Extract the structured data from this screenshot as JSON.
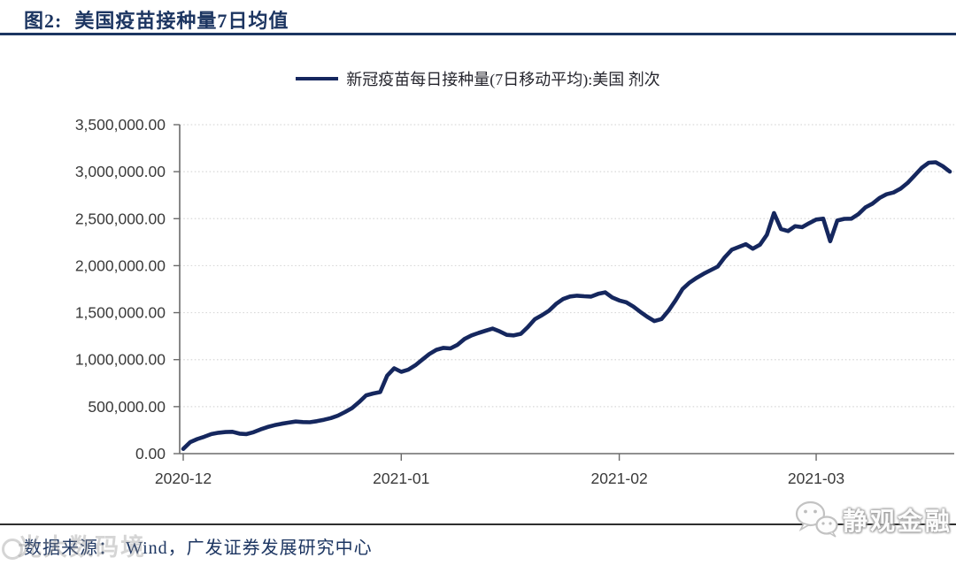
{
  "header": {
    "title_prefix": "图2:",
    "title_main": "美国疫苗接种量7日均值"
  },
  "chart_data": {
    "type": "line",
    "title": "美国疫苗接种量7日均值",
    "legend_label": "新冠疫苗每日接种量(7日移动平均):美国 剂次",
    "line_color": "#15275e",
    "grid": "horizontal-dotted",
    "ylim": [
      0,
      3500000
    ],
    "y_tick_step": 500000,
    "y_tick_labels": [
      "0.00",
      "500,000.00",
      "1,000,000.00",
      "1,500,000.00",
      "2,000,000.00",
      "2,500,000.00",
      "3,000,000.00",
      "3,500,000.00"
    ],
    "x_ticks": [
      {
        "label": "2020-12",
        "day": 0
      },
      {
        "label": "2021-01",
        "day": 31
      },
      {
        "label": "2021-02",
        "day": 62
      },
      {
        "label": "2021-03",
        "day": 90
      }
    ],
    "series": [
      {
        "name": "新冠疫苗每日接种量(7日移动平均):美国 剂次",
        "unit": "剂次",
        "color": "#15275e",
        "values": [
          50000,
          122000,
          155000,
          180000,
          208000,
          222000,
          230000,
          232000,
          213000,
          208000,
          228000,
          258000,
          283000,
          303000,
          318000,
          330000,
          342000,
          336000,
          334000,
          345000,
          360000,
          378000,
          405000,
          442000,
          485000,
          548000,
          620000,
          640000,
          655000,
          830000,
          908000,
          870000,
          893000,
          940000,
          1000000,
          1060000,
          1105000,
          1125000,
          1120000,
          1158000,
          1220000,
          1258000,
          1284000,
          1308000,
          1330000,
          1300000,
          1264000,
          1258000,
          1275000,
          1346000,
          1430000,
          1472000,
          1520000,
          1592000,
          1645000,
          1672000,
          1680000,
          1675000,
          1671000,
          1700000,
          1716000,
          1662000,
          1630000,
          1610000,
          1565000,
          1508000,
          1455000,
          1410000,
          1432000,
          1520000,
          1630000,
          1752000,
          1820000,
          1870000,
          1914000,
          1952000,
          1990000,
          2090000,
          2170000,
          2200000,
          2228000,
          2180000,
          2222000,
          2330000,
          2560000,
          2390000,
          2368000,
          2420000,
          2410000,
          2452000,
          2490000,
          2500000,
          2260000,
          2480000,
          2498000,
          2500000,
          2548000,
          2620000,
          2660000,
          2720000,
          2760000,
          2778000,
          2820000,
          2880000,
          2960000,
          3040000,
          3095000,
          3100000,
          3058000,
          3000000
        ]
      }
    ]
  },
  "footer": {
    "source_label": "数据来源：",
    "source_value": "Wind，广发证券发展研究中心"
  },
  "watermarks": {
    "bottom_right": "静观金融",
    "bottom_left_ghost": "光大数码境"
  }
}
